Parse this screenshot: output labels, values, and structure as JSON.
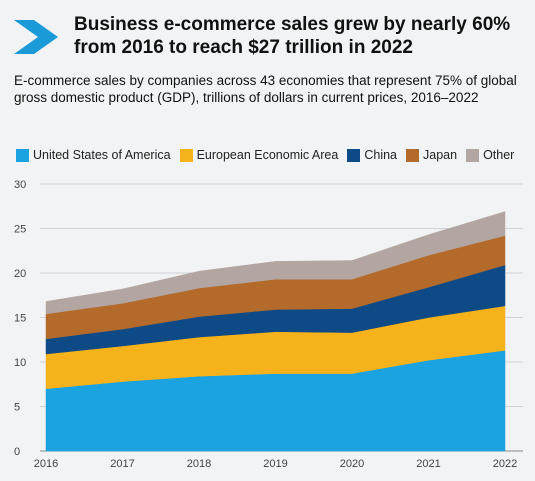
{
  "header": {
    "title": "Business e-commerce sales grew by nearly 60% from 2016 to reach $27 trillion in 2022",
    "subtitle": "E-commerce sales by companies across 43 economies that represent 75% of global gross domestic product (GDP), trillions of dollars in current prices, 2016–2022",
    "chevron_color": "#1a9ad6",
    "chevron_icon": "chevron-right-icon"
  },
  "chart_data": {
    "type": "area",
    "stacked": true,
    "x": [
      "2016",
      "2017",
      "2018",
      "2019",
      "2020",
      "2021",
      "2022"
    ],
    "ylim": [
      0,
      30
    ],
    "yticks": [
      "0",
      "5",
      "10",
      "15",
      "20",
      "25",
      "30"
    ],
    "grid": true,
    "legend_position": "top-left",
    "series": [
      {
        "name": "United States of America",
        "color": "#1aa3e0",
        "values": [
          7.0,
          7.8,
          8.4,
          8.7,
          8.7,
          10.2,
          11.3
        ]
      },
      {
        "name": "European Economic Area",
        "color": "#f5b21b",
        "values": [
          3.9,
          4.0,
          4.4,
          4.7,
          4.6,
          4.8,
          5.0
        ]
      },
      {
        "name": "China",
        "color": "#0e4a86",
        "values": [
          1.7,
          1.9,
          2.3,
          2.5,
          2.7,
          3.4,
          4.6
        ]
      },
      {
        "name": "Japan",
        "color": "#b36a2a",
        "values": [
          2.8,
          2.9,
          3.2,
          3.4,
          3.3,
          3.6,
          3.3
        ]
      },
      {
        "name": "Other",
        "color": "#b3a6a2",
        "values": [
          1.4,
          1.6,
          1.9,
          2.0,
          2.1,
          2.3,
          2.7
        ]
      }
    ]
  }
}
